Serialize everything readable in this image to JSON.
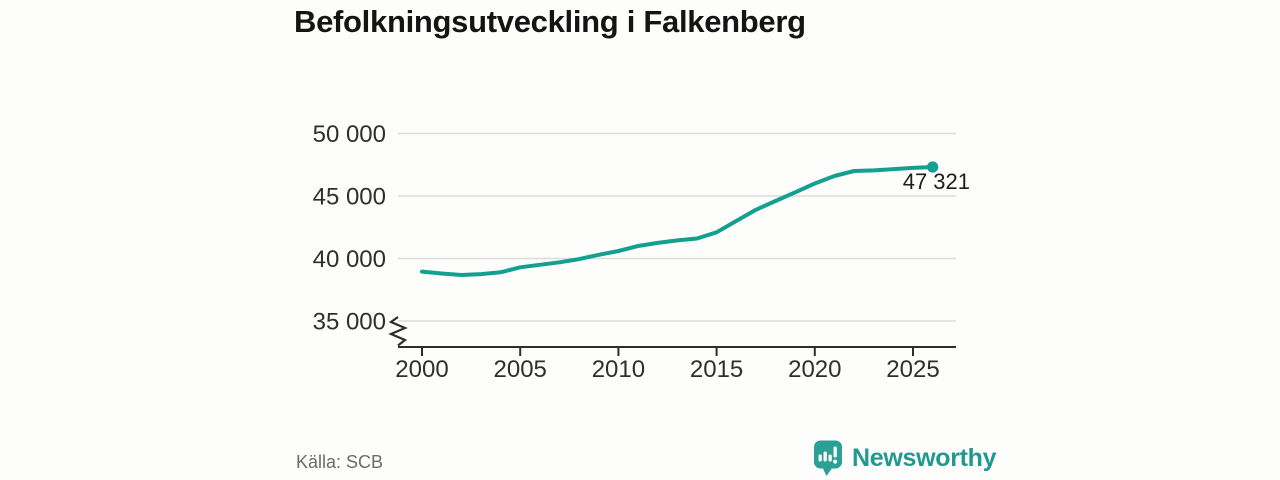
{
  "title": "Befolkningsutveckling i Falkenberg",
  "chart_data": {
    "type": "line",
    "title": "Befolkningsutveckling i Falkenberg",
    "x": [
      2000,
      2001,
      2002,
      2003,
      2004,
      2005,
      2006,
      2007,
      2008,
      2009,
      2010,
      2011,
      2012,
      2013,
      2014,
      2015,
      2016,
      2017,
      2018,
      2019,
      2020,
      2021,
      2022,
      2023,
      2024,
      2025,
      2026
    ],
    "values": [
      38950,
      38800,
      38680,
      38750,
      38900,
      39300,
      39500,
      39700,
      39950,
      40300,
      40600,
      41000,
      41250,
      41450,
      41600,
      42100,
      43000,
      43900,
      44600,
      45300,
      46000,
      46600,
      47000,
      47050,
      47150,
      47250,
      47321
    ],
    "end_value": 47321,
    "end_label": "47 321",
    "xticks": {
      "values": [
        2000,
        2005,
        2010,
        2015,
        2020,
        2025
      ],
      "labels": [
        "2000",
        "2005",
        "2010",
        "2015",
        "2020",
        "2025"
      ]
    },
    "yticks": {
      "values": [
        50000,
        45000,
        40000,
        35000
      ],
      "labels": [
        "50 000",
        "45 000",
        "40 000",
        "35 000"
      ]
    },
    "ylim": [
      35000,
      50000
    ],
    "grid": "horizontal",
    "axis_break": true,
    "legend": "none",
    "line_color": "#14a090"
  },
  "footer": {
    "source": "Källa: SCB",
    "brand": "Newsworthy"
  },
  "colors": {
    "accent": "#14a090",
    "brand": "#22998e",
    "axis": "#2e2e2e",
    "grid": "#dcdcdc",
    "muted_text": "#6b6b6b"
  }
}
